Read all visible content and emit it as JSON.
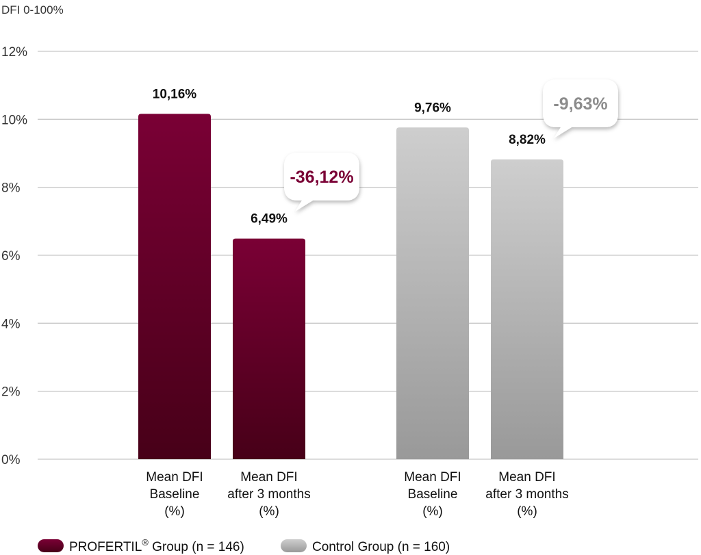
{
  "chart_data": {
    "type": "bar",
    "ylabel": "DFI 0-100%",
    "yticks": [
      "0%",
      "2%",
      "4%",
      "6%",
      "8%",
      "10%",
      "12%"
    ],
    "ylim": [
      0,
      12
    ],
    "grid": true,
    "legend_position": "bottom-left",
    "groups": [
      {
        "name": "PROFERTIL",
        "name_mark": "®",
        "name_suffix": " Group",
        "n_label": "(n = 146)",
        "color": "#7a0035",
        "color_dark": "#470018",
        "change_label": "-36,12%",
        "change_color": "#7a0035",
        "bars": [
          {
            "category": [
              "Mean DFI",
              "Baseline",
              "(%)"
            ],
            "value": 10.16,
            "label": "10,16%"
          },
          {
            "category": [
              "Mean DFI",
              "after 3 months",
              "(%)"
            ],
            "value": 6.49,
            "label": "6,49%"
          }
        ]
      },
      {
        "name": "Control Group",
        "name_mark": "",
        "name_suffix": "",
        "n_label": "(n = 160)",
        "color": "#cccccc",
        "color_dark": "#999999",
        "change_label": "-9,63%",
        "change_color": "#8c8c8c",
        "bars": [
          {
            "category": [
              "Mean DFI",
              "Baseline",
              "(%)"
            ],
            "value": 9.76,
            "label": "9,76%"
          },
          {
            "category": [
              "Mean DFI",
              "after 3 months",
              "(%)"
            ],
            "value": 8.82,
            "label": "8,82%"
          }
        ]
      }
    ]
  }
}
